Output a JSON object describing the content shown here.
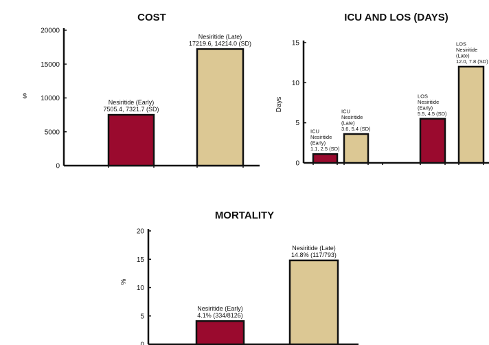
{
  "colors": {
    "early": "#9a0a2e",
    "late": "#dcc894",
    "axis": "#111111"
  },
  "chart_data": [
    {
      "id": "cost",
      "type": "bar",
      "title": "COST",
      "ylabel": "$",
      "ylim": [
        0,
        20000
      ],
      "yticks": [
        "0",
        "5000",
        "10000",
        "15000",
        "20000"
      ],
      "bars": [
        {
          "name": "Nesiritide (Early)",
          "value": 7505.4,
          "label_lines": [
            "Nesiritide (Early)",
            "7505.4, 7321.7 (SD)"
          ],
          "color": "#9a0a2e"
        },
        {
          "name": "Nesiritide (Late)",
          "value": 17219.6,
          "label_lines": [
            "Nesiritide (Late)",
            "17219.6, 14214.0 (SD)"
          ],
          "color": "#dcc894"
        }
      ]
    },
    {
      "id": "icu_los",
      "type": "bar",
      "title": "ICU AND LOS (DAYS)",
      "ylabel": "Days",
      "ylim": [
        0,
        15
      ],
      "yticks": [
        "0",
        "5",
        "10",
        "15"
      ],
      "bars": [
        {
          "name": "ICU Nesiritide (Early)",
          "value": 1.1,
          "label_lines": [
            "ICU",
            "Nesiritide",
            "(Early)",
            "1.1, 2.5 (SD)"
          ],
          "color": "#9a0a2e"
        },
        {
          "name": "ICU Nesiritide (Late)",
          "value": 3.6,
          "label_lines": [
            "ICU",
            "Nesiritide",
            "(Late)",
            "3.6, 5.4 (SD)"
          ],
          "color": "#dcc894"
        },
        {
          "name": "LOS Nesiritide (Early)",
          "value": 5.5,
          "label_lines": [
            "LOS",
            "Nesiritide",
            "(Early)",
            "5.5, 4.5 (SD)"
          ],
          "color": "#9a0a2e"
        },
        {
          "name": "LOS Nesiritide (Late)",
          "value": 12.0,
          "label_lines": [
            "LOS",
            "Nesiritide",
            "(Late)",
            "12.0, 7.8 (SD)"
          ],
          "color": "#dcc894"
        }
      ]
    },
    {
      "id": "mortality",
      "type": "bar",
      "title": "MORTALITY",
      "ylabel": "%",
      "ylim": [
        0,
        20
      ],
      "yticks": [
        "0",
        "5",
        "10",
        "15",
        "20"
      ],
      "bars": [
        {
          "name": "Nesiritide (Early)",
          "value": 4.1,
          "label_lines": [
            "Nesiritide (Early)",
            "4.1% (334/8126)"
          ],
          "color": "#9a0a2e"
        },
        {
          "name": "Nesiritide (Late)",
          "value": 14.8,
          "label_lines": [
            "Nesiritide (Late)",
            "14.8% (117/793)"
          ],
          "color": "#dcc894"
        }
      ]
    }
  ]
}
